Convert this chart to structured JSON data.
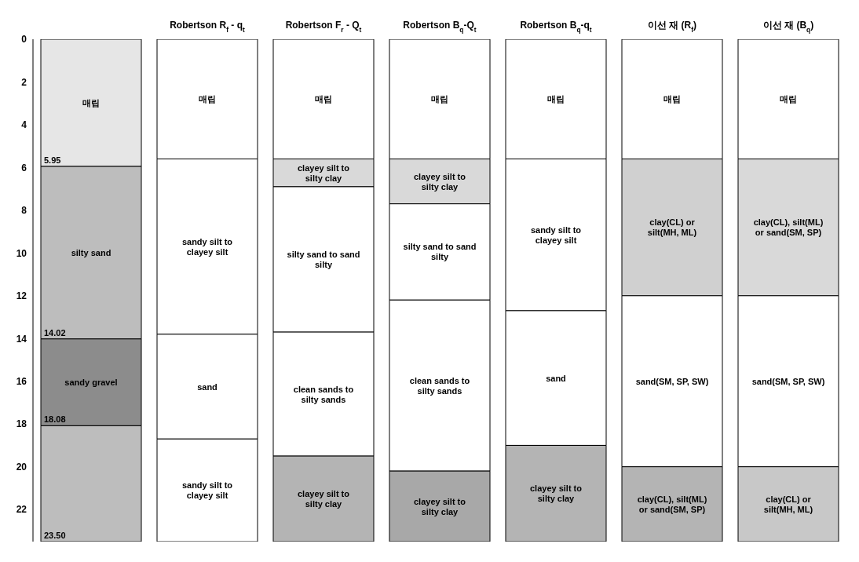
{
  "chart_data": {
    "type": "bar",
    "stacked": true,
    "categories": [
      null,
      "Robertson R$_{f}$ - q$_{t}$",
      "Robertson F$_{r}$ - Q$_{t}$",
      "Robertson B$_{q}$-Q$_{t}$",
      "Robertson B$_{q}$-q$_{t}$",
      "이선 재 (R$_{f}$)",
      "이선 재 (B$_{q}$)"
    ],
    "ylim": [
      23.5,
      0
    ],
    "yticks": [
      0,
      2,
      4,
      6,
      8,
      10,
      12,
      14,
      16,
      18,
      20,
      22
    ],
    "series": [
      {
        "values": [
          5.95,
          5.6,
          5.6,
          5.6,
          5.6,
          5.6,
          5.6
        ],
        "colors": [
          "#e6e6e6",
          "#ffffff",
          "#ffffff",
          "#ffffff",
          "#ffffff",
          "#ffffff",
          "#ffffff"
        ],
        "value_labels": [
          "매립",
          "매립",
          "매립",
          "매립",
          "매립",
          "매립",
          "매립"
        ]
      },
      {
        "values": [
          8.07,
          8.2,
          1.3,
          2.1,
          7.1,
          6.4,
          6.4
        ],
        "colors": [
          "#bdbdbd",
          "#ffffff",
          "#d9d9d9",
          "#d9d9d9",
          "#ffffff",
          "#d0d0d0",
          "#d9d9d9"
        ],
        "value_labels": [
          "silty sand",
          "sandy silt to clayey silt",
          "clayey silt to silty clay",
          "clayey silt to silty clay",
          "sandy silt to clayey silt",
          "clay(CL) or silt(MH, ML)",
          "clay(CL), silt(ML) or sand(SM, SP)"
        ]
      },
      {
        "values": [
          4.06,
          4.9,
          6.8,
          4.5,
          6.3,
          8.0,
          8.0
        ],
        "colors": [
          "#8c8c8c",
          "#ffffff",
          "#ffffff",
          "#ffffff",
          "#ffffff",
          "#ffffff",
          "#ffffff"
        ],
        "value_labels": [
          "sandy gravel",
          "sand",
          "silty sand to sand silty",
          "silty sand to sand silty",
          "sand",
          "sand(SM, SP, SW)",
          "sand(SM, SP, SW)"
        ]
      },
      {
        "values": [
          5.42,
          4.8,
          5.8,
          8.0,
          4.5,
          3.5,
          3.5
        ],
        "colors": [
          "#bdbdbd",
          "#ffffff",
          "#ffffff",
          "#ffffff",
          "#b4b4b4",
          "#b4b4b4",
          "#c8c8c8"
        ],
        "value_labels": [
          null,
          "sandy silt to clayey silt",
          "clean sands to silty sands",
          "clean sands to silty sands",
          "clayey silt to silty clay",
          "clay(CL), silt(ML) or sand(SM, SP)",
          "clay(CL) or silt(MH, ML)"
        ]
      },
      {
        "values": [
          null,
          null,
          4.0,
          3.3,
          null,
          null,
          null
        ],
        "colors": [
          "#ffffff",
          "#ffffff",
          "#b4b4b4",
          "#a8a8a8",
          "#ffffff",
          "#ffffff",
          "#ffffff"
        ],
        "value_labels": [
          null,
          null,
          "clayey silt to silty clay",
          "clayey silt to silty clay",
          null,
          null,
          null
        ]
      }
    ],
    "annotations": [
      {
        "text": "5.95",
        "y": 5.95
      },
      {
        "text": "14.02",
        "y": 14.02
      },
      {
        "text": "18.08",
        "y": 18.08
      },
      {
        "text": "23.50",
        "y": 23.5
      }
    ]
  }
}
